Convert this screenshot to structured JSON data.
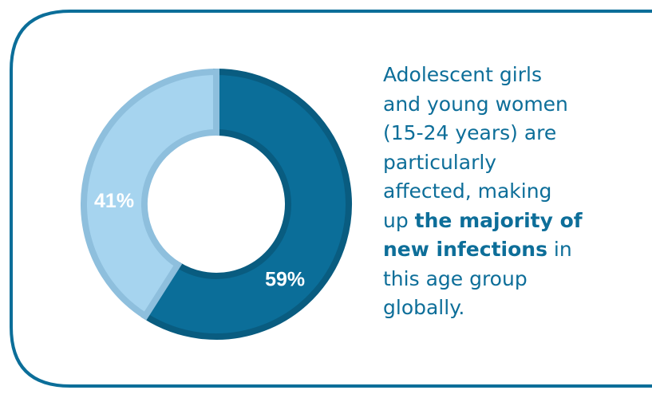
{
  "chart_data": {
    "type": "pie",
    "variant": "donut",
    "categories": [
      "",
      ""
    ],
    "values": [
      59,
      41
    ],
    "data_labels": [
      "59%",
      "41%"
    ],
    "colors": [
      "#0b6e99",
      "#a6d4ef"
    ],
    "title": "",
    "legend": "none"
  },
  "colors": {
    "accent": "#0b6e99",
    "accent_dark": "#095c80",
    "light": "#a6d4ef",
    "light_edge": "#8ebfdd",
    "text": "#0d6e99"
  },
  "description": {
    "line1": "Adolescent girls",
    "line2": "and young women",
    "line3": "(15-24 years) are",
    "line4": "particularly",
    "line5": "affected, making",
    "line6_pre": "up ",
    "line6_bold": "the majority of",
    "line7_bold": "new infections",
    "line7_post": " in",
    "line8": "this age group",
    "line9": "globally."
  }
}
